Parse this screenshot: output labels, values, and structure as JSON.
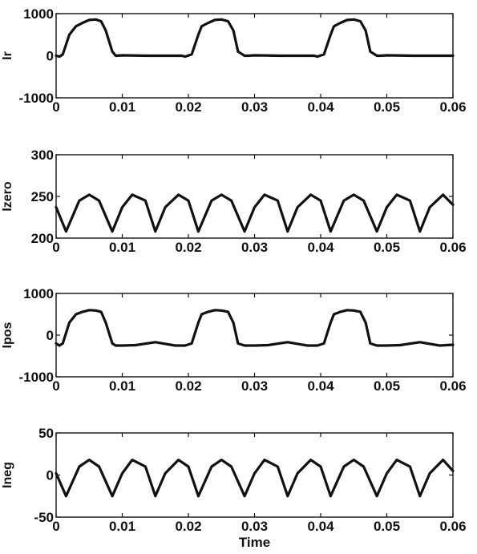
{
  "chart_data": [
    {
      "type": "line",
      "ylabel": "Ir",
      "xlabel": "",
      "xlim": [
        0,
        0.06
      ],
      "ylim": [
        -1000,
        1000
      ],
      "xticks": [
        "0",
        "0.01",
        "0.02",
        "0.03",
        "0.04",
        "0.05",
        "0.06"
      ],
      "yticks": [
        "-1000",
        "0",
        "1000"
      ],
      "series": [
        {
          "x": [
            0,
            0.0005,
            0.001,
            0.002,
            0.003,
            0.004,
            0.005,
            0.006,
            0.0068,
            0.0075,
            0.0085,
            0.009,
            0.01,
            0.014,
            0.016,
            0.019,
            0.0195,
            0.0205,
            0.0215,
            0.022,
            0.023,
            0.024,
            0.025,
            0.026,
            0.0268,
            0.0275,
            0.0285,
            0.029,
            0.03,
            0.034,
            0.036,
            0.039,
            0.0395,
            0.0405,
            0.0415,
            0.042,
            0.043,
            0.044,
            0.045,
            0.046,
            0.0468,
            0.0475,
            0.0485,
            0.049,
            0.05,
            0.054,
            0.056,
            0.059,
            0.06
          ],
          "y": [
            0,
            -20,
            30,
            500,
            700,
            780,
            850,
            860,
            820,
            600,
            100,
            0,
            10,
            0,
            0,
            0,
            -20,
            30,
            500,
            700,
            780,
            850,
            860,
            820,
            600,
            100,
            0,
            0,
            10,
            0,
            0,
            0,
            -20,
            30,
            500,
            700,
            780,
            850,
            860,
            820,
            600,
            100,
            0,
            0,
            10,
            0,
            0,
            0,
            0
          ]
        }
      ]
    },
    {
      "type": "line",
      "ylabel": "Izero",
      "xlabel": "",
      "xlim": [
        0,
        0.06
      ],
      "ylim": [
        200,
        300
      ],
      "xticks": [
        "0",
        "0.01",
        "0.02",
        "0.03",
        "0.04",
        "0.05",
        "0.06"
      ],
      "yticks": [
        "200",
        "250",
        "300"
      ],
      "series": [
        {
          "x": [
            0,
            0.0015,
            0.0035,
            0.005,
            0.0065,
            0.0085,
            0.01,
            0.0115,
            0.0135,
            0.015,
            0.0165,
            0.0185,
            0.02,
            0.0215,
            0.0235,
            0.025,
            0.0265,
            0.0285,
            0.03,
            0.0315,
            0.0335,
            0.035,
            0.0365,
            0.0385,
            0.04,
            0.0415,
            0.0435,
            0.045,
            0.0465,
            0.0485,
            0.05,
            0.0515,
            0.0535,
            0.055,
            0.0565,
            0.0585,
            0.06
          ],
          "y": [
            237,
            208,
            245,
            252,
            245,
            208,
            237,
            252,
            245,
            208,
            237,
            252,
            245,
            208,
            245,
            252,
            245,
            208,
            237,
            252,
            245,
            208,
            237,
            252,
            245,
            208,
            245,
            252,
            245,
            208,
            237,
            252,
            245,
            208,
            237,
            252,
            240
          ]
        }
      ]
    },
    {
      "type": "line",
      "ylabel": "Ipos",
      "xlabel": "",
      "xlim": [
        0,
        0.06
      ],
      "ylim": [
        -1000,
        1000
      ],
      "xticks": [
        "0",
        "0.01",
        "0.02",
        "0.03",
        "0.04",
        "0.05",
        "0.06"
      ],
      "yticks": [
        "-1000",
        "0",
        "1000"
      ],
      "series": [
        {
          "x": [
            0,
            0.0005,
            0.001,
            0.002,
            0.003,
            0.004,
            0.005,
            0.006,
            0.0068,
            0.0075,
            0.0085,
            0.009,
            0.01,
            0.012,
            0.015,
            0.018,
            0.0195,
            0.0205,
            0.0215,
            0.022,
            0.023,
            0.024,
            0.025,
            0.026,
            0.0268,
            0.0275,
            0.0285,
            0.029,
            0.03,
            0.032,
            0.035,
            0.038,
            0.0395,
            0.0405,
            0.0415,
            0.042,
            0.043,
            0.044,
            0.045,
            0.046,
            0.0468,
            0.0475,
            0.0485,
            0.049,
            0.05,
            0.052,
            0.055,
            0.058,
            0.06
          ],
          "y": [
            -200,
            -250,
            -200,
            300,
            500,
            560,
            600,
            590,
            560,
            300,
            -200,
            -250,
            -250,
            -240,
            -170,
            -250,
            -250,
            -200,
            300,
            500,
            560,
            600,
            590,
            560,
            300,
            -200,
            -250,
            -250,
            -250,
            -240,
            -170,
            -250,
            -250,
            -200,
            300,
            500,
            560,
            600,
            590,
            560,
            300,
            -200,
            -250,
            -250,
            -250,
            -240,
            -170,
            -250,
            -230
          ]
        }
      ]
    },
    {
      "type": "line",
      "ylabel": "Ineg",
      "xlabel": "Time",
      "xlim": [
        0,
        0.06
      ],
      "ylim": [
        -50,
        50
      ],
      "xticks": [
        "0",
        "0.01",
        "0.02",
        "0.03",
        "0.04",
        "0.05",
        "0.06"
      ],
      "yticks": [
        "-50",
        "0",
        "50"
      ],
      "series": [
        {
          "x": [
            0,
            0.0015,
            0.0035,
            0.005,
            0.0065,
            0.0085,
            0.01,
            0.0115,
            0.0135,
            0.015,
            0.0165,
            0.0185,
            0.02,
            0.0215,
            0.0235,
            0.025,
            0.0265,
            0.0285,
            0.03,
            0.0315,
            0.0335,
            0.035,
            0.0365,
            0.0385,
            0.04,
            0.0415,
            0.0435,
            0.045,
            0.0465,
            0.0485,
            0.05,
            0.0515,
            0.0535,
            0.055,
            0.0565,
            0.0585,
            0.06
          ],
          "y": [
            2,
            -25,
            10,
            18,
            10,
            -25,
            2,
            18,
            10,
            -25,
            2,
            18,
            10,
            -25,
            10,
            18,
            10,
            -25,
            2,
            18,
            10,
            -25,
            2,
            18,
            10,
            -25,
            10,
            18,
            10,
            -25,
            2,
            18,
            10,
            -25,
            2,
            18,
            5
          ]
        }
      ]
    }
  ]
}
